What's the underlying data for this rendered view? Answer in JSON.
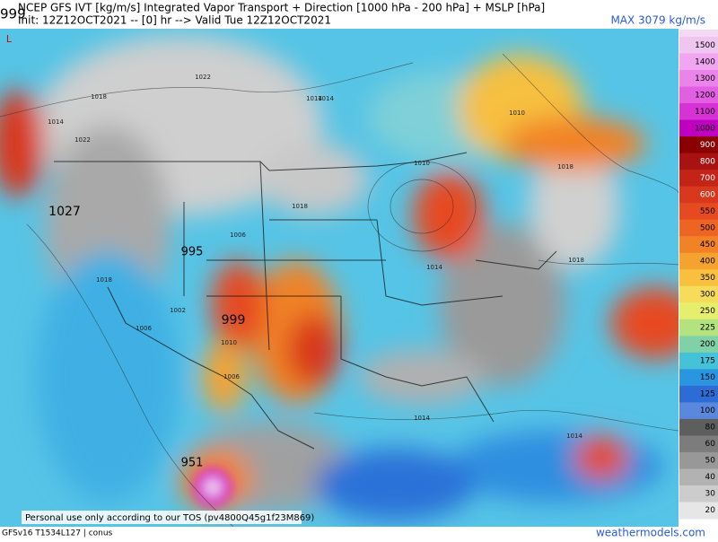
{
  "header": {
    "title": "NCEP GFS IVT [kg/m/s] Integrated Vapor Transport + Direction [1000 hPa - 200 hPa] + MSLP [hPa]",
    "init": "Init: 12Z12OCT2021 -- [0] hr --> Valid Tue 12Z12OCT2021",
    "max": "MAX 3079 kg/m/s",
    "corner": "999"
  },
  "map_labels": [
    "L",
    "1027",
    "995",
    "999",
    "951",
    "1022",
    "1018",
    "1014",
    "1022",
    "1014",
    "1018",
    "1010",
    "1010",
    "1018",
    "1018",
    "1014",
    "1006",
    "1002",
    "1006",
    "1014",
    "1014",
    "1018",
    "1014",
    "1010",
    "1006"
  ],
  "colorbar": {
    "levels": [
      1500,
      1400,
      1300,
      1200,
      1100,
      1000,
      900,
      800,
      700,
      600,
      550,
      500,
      450,
      400,
      350,
      300,
      250,
      225,
      200,
      175,
      150,
      125,
      100,
      80,
      60,
      50,
      40,
      30,
      20
    ],
    "colors": [
      "#efc6ef",
      "#f2a6f2",
      "#ea84ea",
      "#e25ee2",
      "#d632d6",
      "#c000c0",
      "#8a0000",
      "#a81212",
      "#c42418",
      "#d8381e",
      "#e64a20",
      "#ee6422",
      "#f28226",
      "#f6a230",
      "#f8c03e",
      "#f6dc5a",
      "#e6ee6e",
      "#b4e27e",
      "#80d2a6",
      "#46c2d8",
      "#2a96e2",
      "#2c6cd4",
      "#5a88dc",
      "#5e5e5e",
      "#7c7c7c",
      "#989898",
      "#b2b2b2",
      "#cccccc",
      "#e6e6e6"
    ]
  },
  "footer": {
    "tos": "Personal use only according to our TOS (pv4800Q45g1f23M869)",
    "model": "GFSv16 T1534L127 | conus",
    "site": "weathermodels.com"
  }
}
